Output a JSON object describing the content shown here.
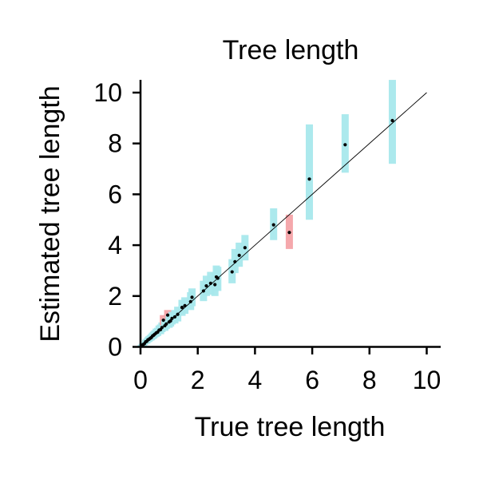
{
  "chart_data": {
    "type": "scatter",
    "title": "Tree length",
    "xlabel": "True tree length",
    "ylabel": "Estimated tree length",
    "xlim": [
      0,
      10.5
    ],
    "ylim": [
      0,
      10.5
    ],
    "xticks": [
      0,
      2,
      4,
      6,
      8,
      10
    ],
    "yticks": [
      0,
      2,
      4,
      6,
      8,
      10
    ],
    "grid": false,
    "reference_line": {
      "x": [
        0,
        10
      ],
      "y": [
        0,
        10
      ]
    },
    "colors": {
      "covered_interval": "#a8e8ec",
      "covered_interval_dense": "#5ed3dc",
      "missed_interval": "#f4a3a8",
      "point": "#000000",
      "reference_line": "#000000"
    },
    "points": [
      {
        "x": 0.03,
        "y": 0.03,
        "lo": 0.0,
        "hi": 0.08,
        "covered": true
      },
      {
        "x": 0.06,
        "y": 0.07,
        "lo": 0.02,
        "hi": 0.12,
        "covered": true
      },
      {
        "x": 0.1,
        "y": 0.1,
        "lo": 0.04,
        "hi": 0.17,
        "covered": true
      },
      {
        "x": 0.14,
        "y": 0.13,
        "lo": 0.07,
        "hi": 0.2,
        "covered": true
      },
      {
        "x": 0.18,
        "y": 0.2,
        "lo": 0.12,
        "hi": 0.28,
        "covered": true
      },
      {
        "x": 0.22,
        "y": 0.22,
        "lo": 0.13,
        "hi": 0.32,
        "covered": true
      },
      {
        "x": 0.26,
        "y": 0.28,
        "lo": 0.18,
        "hi": 0.38,
        "covered": true
      },
      {
        "x": 0.3,
        "y": 0.3,
        "lo": 0.2,
        "hi": 0.42,
        "covered": true
      },
      {
        "x": 0.34,
        "y": 0.34,
        "lo": 0.24,
        "hi": 0.46,
        "covered": true
      },
      {
        "x": 0.38,
        "y": 0.37,
        "lo": 0.26,
        "hi": 0.5,
        "covered": true
      },
      {
        "x": 0.42,
        "y": 0.43,
        "lo": 0.3,
        "hi": 0.56,
        "covered": true
      },
      {
        "x": 0.46,
        "y": 0.46,
        "lo": 0.33,
        "hi": 0.6,
        "covered": true
      },
      {
        "x": 0.5,
        "y": 0.5,
        "lo": 0.37,
        "hi": 0.65,
        "covered": true
      },
      {
        "x": 0.55,
        "y": 0.55,
        "lo": 0.4,
        "hi": 0.72,
        "covered": true
      },
      {
        "x": 0.6,
        "y": 0.58,
        "lo": 0.43,
        "hi": 0.75,
        "covered": true
      },
      {
        "x": 0.65,
        "y": 0.66,
        "lo": 0.5,
        "hi": 0.84,
        "covered": true
      },
      {
        "x": 0.7,
        "y": 0.68,
        "lo": 0.5,
        "hi": 0.88,
        "covered": true
      },
      {
        "x": 0.75,
        "y": 0.76,
        "lo": 0.58,
        "hi": 0.96,
        "covered": true
      },
      {
        "x": 0.8,
        "y": 1.05,
        "lo": 0.85,
        "hi": 1.25,
        "covered": false
      },
      {
        "x": 0.85,
        "y": 0.83,
        "lo": 0.63,
        "hi": 1.05,
        "covered": true
      },
      {
        "x": 0.9,
        "y": 0.9,
        "lo": 0.7,
        "hi": 1.12,
        "covered": true
      },
      {
        "x": 0.95,
        "y": 1.25,
        "lo": 1.05,
        "hi": 1.45,
        "covered": false
      },
      {
        "x": 1.0,
        "y": 0.98,
        "lo": 0.75,
        "hi": 1.22,
        "covered": true
      },
      {
        "x": 1.05,
        "y": 1.02,
        "lo": 0.8,
        "hi": 1.28,
        "covered": true
      },
      {
        "x": 1.1,
        "y": 1.12,
        "lo": 0.88,
        "hi": 1.38,
        "covered": true
      },
      {
        "x": 1.2,
        "y": 1.18,
        "lo": 0.92,
        "hi": 1.45,
        "covered": true
      },
      {
        "x": 1.3,
        "y": 1.28,
        "lo": 1.0,
        "hi": 1.58,
        "covered": true
      },
      {
        "x": 1.45,
        "y": 1.55,
        "lo": 1.22,
        "hi": 1.85,
        "covered": true
      },
      {
        "x": 1.55,
        "y": 1.62,
        "lo": 1.3,
        "hi": 1.95,
        "covered": true
      },
      {
        "x": 1.75,
        "y": 1.78,
        "lo": 1.45,
        "hi": 2.15,
        "covered": true
      },
      {
        "x": 1.8,
        "y": 1.95,
        "lo": 1.6,
        "hi": 2.3,
        "covered": true
      },
      {
        "x": 2.2,
        "y": 2.2,
        "lo": 1.8,
        "hi": 2.6,
        "covered": true
      },
      {
        "x": 2.3,
        "y": 2.4,
        "lo": 2.0,
        "hi": 2.8,
        "covered": true
      },
      {
        "x": 2.45,
        "y": 2.5,
        "lo": 2.05,
        "hi": 2.95,
        "covered": true
      },
      {
        "x": 2.6,
        "y": 2.45,
        "lo": 2.0,
        "hi": 2.9,
        "covered": true
      },
      {
        "x": 2.65,
        "y": 2.75,
        "lo": 2.25,
        "hi": 3.2,
        "covered": true
      },
      {
        "x": 2.7,
        "y": 2.7,
        "lo": 2.2,
        "hi": 3.15,
        "covered": true
      },
      {
        "x": 3.2,
        "y": 2.95,
        "lo": 2.5,
        "hi": 3.45,
        "covered": true
      },
      {
        "x": 3.3,
        "y": 3.35,
        "lo": 2.9,
        "hi": 3.85,
        "covered": true
      },
      {
        "x": 3.45,
        "y": 3.6,
        "lo": 3.15,
        "hi": 4.1,
        "covered": true
      },
      {
        "x": 3.65,
        "y": 3.9,
        "lo": 3.4,
        "hi": 4.4,
        "covered": true
      },
      {
        "x": 4.65,
        "y": 4.8,
        "lo": 4.2,
        "hi": 5.45,
        "covered": true
      },
      {
        "x": 5.2,
        "y": 4.5,
        "lo": 3.85,
        "hi": 5.2,
        "covered": false
      },
      {
        "x": 5.9,
        "y": 6.6,
        "lo": 5.0,
        "hi": 8.75,
        "covered": true
      },
      {
        "x": 7.15,
        "y": 7.95,
        "lo": 6.85,
        "hi": 9.15,
        "covered": true
      },
      {
        "x": 8.8,
        "y": 8.9,
        "lo": 7.2,
        "hi": 10.5,
        "covered": true
      }
    ]
  }
}
